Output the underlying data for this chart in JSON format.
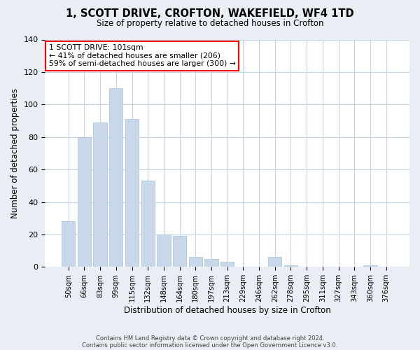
{
  "title": "1, SCOTT DRIVE, CROFTON, WAKEFIELD, WF4 1TD",
  "subtitle": "Size of property relative to detached houses in Crofton",
  "xlabel": "Distribution of detached houses by size in Crofton",
  "ylabel": "Number of detached properties",
  "bar_color": "#c8d8ea",
  "bar_edge_color": "#b0c8de",
  "categories": [
    "50sqm",
    "66sqm",
    "83sqm",
    "99sqm",
    "115sqm",
    "132sqm",
    "148sqm",
    "164sqm",
    "180sqm",
    "197sqm",
    "213sqm",
    "229sqm",
    "246sqm",
    "262sqm",
    "278sqm",
    "295sqm",
    "311sqm",
    "327sqm",
    "343sqm",
    "360sqm",
    "376sqm"
  ],
  "values": [
    28,
    80,
    89,
    110,
    91,
    53,
    20,
    19,
    6,
    5,
    3,
    0,
    0,
    6,
    1,
    0,
    0,
    0,
    0,
    1,
    0
  ],
  "ylim": [
    0,
    140
  ],
  "yticks": [
    0,
    20,
    40,
    60,
    80,
    100,
    120,
    140
  ],
  "annotation_line1": "1 SCOTT DRIVE: 101sqm",
  "annotation_line2": "← 41% of detached houses are smaller (206)",
  "annotation_line3": "59% of semi-detached houses are larger (300) →",
  "annotation_box_color": "white",
  "annotation_box_edge_color": "red",
  "footer1": "Contains HM Land Registry data © Crown copyright and database right 2024.",
  "footer2": "Contains public sector information licensed under the Open Government Licence v3.0.",
  "background_color": "#e8eef4",
  "plot_background_color": "white",
  "grid_color": "#c8d4e0"
}
